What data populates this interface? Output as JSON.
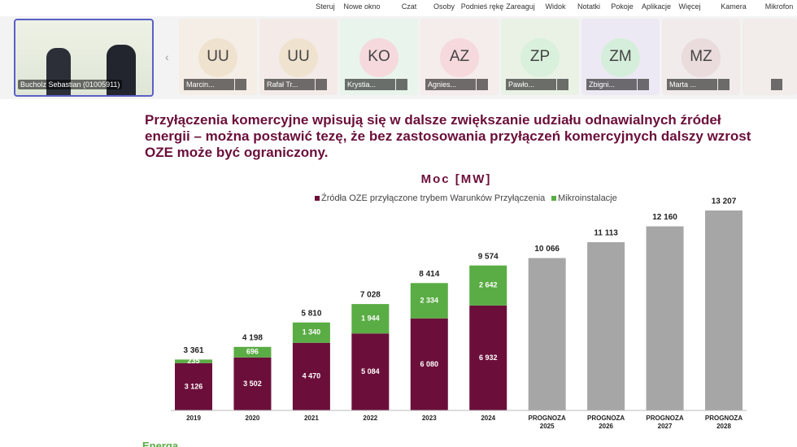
{
  "toolbar": {
    "items": [
      "Steruj",
      "Nowe okno",
      "Czat",
      "Osoby",
      "Podnieś rękę",
      "Zareaguj",
      "Widok",
      "Notatki",
      "Pokoje",
      "Aplikacje",
      "Więcej",
      "Kamera",
      "Mikrofon"
    ]
  },
  "participants": {
    "presenter": "Bucholz Sebastian (01005911)",
    "tiles": [
      {
        "initials": "UU",
        "name": "Marcin..."
      },
      {
        "initials": "UU",
        "name": "Rafał Tr..."
      },
      {
        "initials": "KO",
        "name": "Krystia..."
      },
      {
        "initials": "AZ",
        "name": "Agnies..."
      },
      {
        "initials": "ZP",
        "name": "Pawło..."
      },
      {
        "initials": "ZM",
        "name": "Zbigni..."
      },
      {
        "initials": "MZ",
        "name": "Marta ..."
      }
    ]
  },
  "slide": {
    "title": "Przyłączenia komercyjne wpisują się w dalsze zwiększanie udziału odnawialnych źródeł energii – można postawić tezę, że bez zastosowania przyłączeń komercyjnych dalszy wzrost OZE może być ograniczony.",
    "logo": "Energa",
    "chart_data": {
      "type": "stacked-bar",
      "title": "Moc [MW]",
      "categories": [
        "2019",
        "2020",
        "2021",
        "2022",
        "2023",
        "2024",
        "PROGNOZA 2025",
        "PROGNOZA 2026",
        "PROGNOZA 2027",
        "PROGNOZA 2028"
      ],
      "series": [
        {
          "name": "Źródła OZE przyłączone trybem Warunków Przyłączenia",
          "color": "#6b0f3a",
          "values": [
            3126,
            3502,
            4470,
            5084,
            6080,
            6932,
            null,
            null,
            null,
            null
          ],
          "value_labels": [
            "3 126",
            "3 502",
            "4 470",
            "5 084",
            "6 080",
            "6 932",
            null,
            null,
            null,
            null
          ]
        },
        {
          "name": "Mikroinstalacje",
          "color": "#5aac44",
          "values": [
            235,
            696,
            1340,
            1944,
            2334,
            2642,
            null,
            null,
            null,
            null
          ],
          "value_labels": [
            "235",
            "696",
            "1 340",
            "1 944",
            "2 334",
            "2 642",
            null,
            null,
            null,
            null
          ]
        }
      ],
      "totals": {
        "color": "#a6a6a6",
        "values": [
          3361,
          4198,
          5810,
          7028,
          8414,
          9574,
          10066,
          11113,
          12160,
          13207
        ],
        "value_labels": [
          "3 361",
          "4 198",
          "5 810",
          "7 028",
          "8 414",
          "9 574",
          "10 066",
          "11 113",
          "12 160",
          "13 207"
        ]
      }
    }
  }
}
